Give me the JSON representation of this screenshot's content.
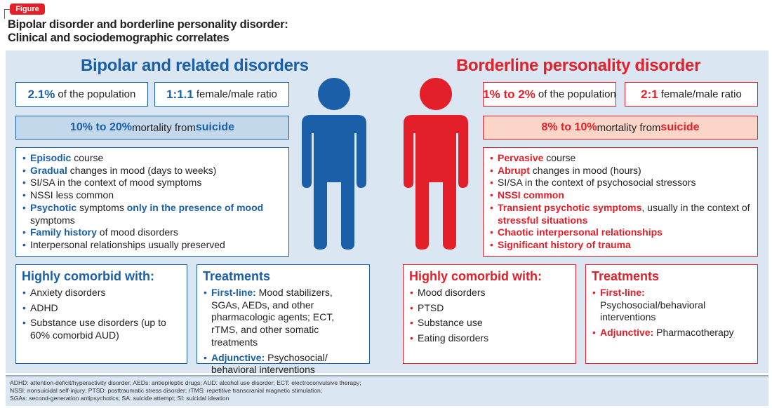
{
  "figure_tag": "Figure",
  "title_line1": "Bipolar disorder and borderline personality disorder:",
  "title_line2": "Clinical and sociodemographic correlates",
  "colors": {
    "blue": "#1a5fa8",
    "red": "#e3202a",
    "panel": "#dae6f2"
  },
  "bipolar": {
    "heading": "Bipolar and related disorders",
    "prevalence": {
      "value": "2.1%",
      "text": "of the population"
    },
    "ratio": {
      "value": "1:1.1",
      "text": "female/male ratio"
    },
    "suicide": [
      {
        "t": "10% to 20%",
        "b": true
      },
      {
        "t": " mortality from ",
        "b": false
      },
      {
        "t": "suicide",
        "b": true
      }
    ],
    "features": [
      [
        {
          "t": "Episodic",
          "b": true
        },
        {
          "t": " course",
          "b": false
        }
      ],
      [
        {
          "t": "Gradual",
          "b": true
        },
        {
          "t": " changes in mood (days to weeks)",
          "b": false
        }
      ],
      [
        {
          "t": "SI/SA in the context of mood symptoms",
          "b": false
        }
      ],
      [
        {
          "t": "NSSI less common",
          "b": false
        }
      ],
      [
        {
          "t": "Psychotic",
          "b": true
        },
        {
          "t": " symptoms ",
          "b": false
        },
        {
          "t": "only in the presence of mood",
          "b": true
        },
        {
          "t": " symptoms",
          "b": false
        }
      ],
      [
        {
          "t": "Family history",
          "b": true
        },
        {
          "t": " of mood disorders",
          "b": false
        }
      ],
      [
        {
          "t": "Interpersonal relationships usually preserved",
          "b": false
        }
      ]
    ],
    "comorbid_heading": "Highly comorbid with:",
    "comorbid": [
      "Anxiety disorders",
      "ADHD",
      "Substance use disorders (up to 60% comorbid AUD)"
    ],
    "treatments_heading": "Treatments",
    "treatments": [
      [
        {
          "t": "First-line:",
          "b": true
        },
        {
          "t": " Mood stabilizers, SGAs, AEDs, and other pharmacologic agents; ECT, rTMS, and other somatic treatments",
          "b": false
        }
      ],
      [
        {
          "t": "Adjunctive:",
          "b": true
        },
        {
          "t": " Psychosocial/ behavioral interventions",
          "b": false
        }
      ]
    ]
  },
  "borderline": {
    "heading": "Borderline personality disorder",
    "prevalence": {
      "value": "1% to 2%",
      "text": "of the population"
    },
    "ratio": {
      "value": "2:1",
      "text": "female/male ratio"
    },
    "suicide": [
      {
        "t": "8% to 10%",
        "b": true
      },
      {
        "t": " mortality from ",
        "b": false
      },
      {
        "t": "suicide",
        "b": true
      }
    ],
    "features": [
      [
        {
          "t": "Pervasive",
          "b": true
        },
        {
          "t": " course",
          "b": false
        }
      ],
      [
        {
          "t": "Abrupt",
          "b": true
        },
        {
          "t": " changes in mood (hours)",
          "b": false
        }
      ],
      [
        {
          "t": "SI/SA in the context of psychosocial stressors",
          "b": false
        }
      ],
      [
        {
          "t": "NSSI common",
          "b": true
        }
      ],
      [
        {
          "t": "Transient psychotic symptoms",
          "b": true
        },
        {
          "t": ", usually in the context of ",
          "b": false
        },
        {
          "t": "stressful situations",
          "b": true
        }
      ],
      [
        {
          "t": "Chaotic interpersonal relationships",
          "b": true
        }
      ],
      [
        {
          "t": "Significant history of trauma",
          "b": true
        }
      ]
    ],
    "comorbid_heading": "Highly comorbid with:",
    "comorbid": [
      "Mood disorders",
      "PTSD",
      "Substance use",
      "Eating disorders"
    ],
    "treatments_heading": "Treatments",
    "treatments": [
      [
        {
          "t": "First-line:",
          "b": true
        },
        {
          "t": " Psychosocial/behavioral interventions",
          "b": false
        }
      ],
      [
        {
          "t": "Adjunctive:",
          "b": true
        },
        {
          "t": " Pharmacotherapy",
          "b": false
        }
      ]
    ]
  },
  "footnote": [
    "ADHD: attention-deficit/hyperactivity disorder; AEDs: antiepileptic drugs; AUD: alcohol use disorder; ECT: electroconvulsive therapy;",
    "NSSI: nonsuicidal self-injury; PTSD: posttraumatic stress disorder; rTMS: repetitive transcranial magnetic stimulation;",
    "SGAs: second-generation antipsychotics; SA: suicide attempt; SI: suicidal ideation"
  ]
}
